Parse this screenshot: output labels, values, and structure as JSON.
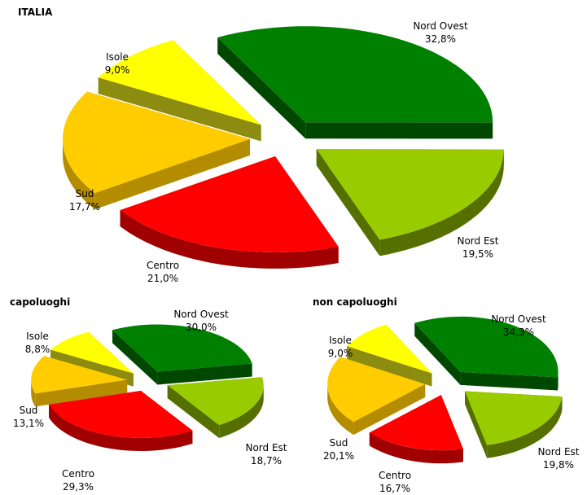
{
  "chart_data": [
    {
      "type": "pie",
      "title": "ITALIA",
      "slices": [
        {
          "name": "Nord Ovest",
          "value": 32.8,
          "value_label": "32,8%"
        },
        {
          "name": "Nord Est",
          "value": 19.5,
          "value_label": "19,5%"
        },
        {
          "name": "Centro",
          "value": 21.0,
          "value_label": "21,0%"
        },
        {
          "name": "Sud",
          "value": 17.7,
          "value_label": "17,7%"
        },
        {
          "name": "Isole",
          "value": 9.0,
          "value_label": "9,0%"
        }
      ],
      "style": "3d-exploded"
    },
    {
      "type": "pie",
      "title": "capoluoghi",
      "slices": [
        {
          "name": "Nord Ovest",
          "value": 30.0,
          "value_label": "30,0%"
        },
        {
          "name": "Nord Est",
          "value": 18.7,
          "value_label": "18,7%"
        },
        {
          "name": "Centro",
          "value": 29.3,
          "value_label": "29,3%"
        },
        {
          "name": "Sud",
          "value": 13.1,
          "value_label": "13,1%"
        },
        {
          "name": "Isole",
          "value": 8.8,
          "value_label": "8,8%"
        }
      ],
      "style": "3d-exploded"
    },
    {
      "type": "pie",
      "title": "non capoluoghi",
      "slices": [
        {
          "name": "Nord Ovest",
          "value": 34.3,
          "value_label": "34,3%"
        },
        {
          "name": "Nord Est",
          "value": 19.8,
          "value_label": "19,8%"
        },
        {
          "name": "Centro",
          "value": 16.7,
          "value_label": "16,7%"
        },
        {
          "name": "Sud",
          "value": 20.1,
          "value_label": "20,1%"
        },
        {
          "name": "Isole",
          "value": 9.0,
          "value_label": "9,0%"
        }
      ],
      "style": "3d-exploded"
    }
  ],
  "colors": {
    "Nord Ovest": {
      "top": "#008000",
      "side": "#004800"
    },
    "Nord Est": {
      "top": "#99cc00",
      "side": "#557000"
    },
    "Centro": {
      "top": "#ff0000",
      "side": "#a00000"
    },
    "Sud": {
      "top": "#ffcc00",
      "side": "#b38c00"
    },
    "Isole": {
      "top": "#ffff00",
      "side": "#8c8c10"
    }
  }
}
